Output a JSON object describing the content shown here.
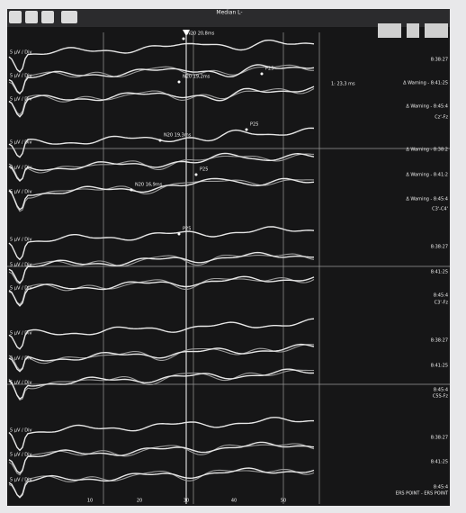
{
  "header": {
    "title": "Median L-"
  },
  "cursor": "1: 23,3 ms",
  "traces": [
    {
      "scale": "5 µV / Div",
      "time": "8:38:27"
    },
    {
      "scale": "5 µV / Div",
      "time": "Δ Warning - 8:41:25"
    },
    {
      "scale": "5 µV / Div",
      "time": "Δ Warning - 8:45:4"
    },
    {
      "scale": "5 µV / Div",
      "time": "Δ Warning - 8:38:2"
    },
    {
      "scale": "5 µV / Div",
      "time": "Δ Warning - 8:41:2"
    },
    {
      "scale": "5 µV / Div",
      "time": "Δ Warning - 8:45:4"
    },
    {
      "scale": "5 µV / Div",
      "time": "8:38:27"
    },
    {
      "scale": "5 µV / Div",
      "time": "8:41:25"
    },
    {
      "scale": "5 µV / Div",
      "time": "8:45:4"
    },
    {
      "scale": "5 µV / Div",
      "time": "8:38:27"
    },
    {
      "scale": "5 µV / Div",
      "time": "8:41:25"
    },
    {
      "scale": "5 µV / Div",
      "time": "8:45:4"
    },
    {
      "scale": "5 µV / Div",
      "time": "8:38:27"
    },
    {
      "scale": "5 µV / Div",
      "time": "8:41:25"
    },
    {
      "scale": "5 µV / Div",
      "time": "8:45:4"
    }
  ],
  "channels": [
    "Cz'-Fz",
    "C3'-C4'",
    "C3'-Fz",
    "C5S-Fz",
    "ERS POINT - ERS POINT"
  ],
  "peaks": [
    "N20 20,8ms",
    "P25",
    "N20 19,2ms",
    "P25",
    "N20 19,3ms",
    "P25",
    "N20 16,9ms",
    "P25"
  ],
  "x_axis": [
    "10",
    "20",
    "30",
    "40",
    "50"
  ]
}
